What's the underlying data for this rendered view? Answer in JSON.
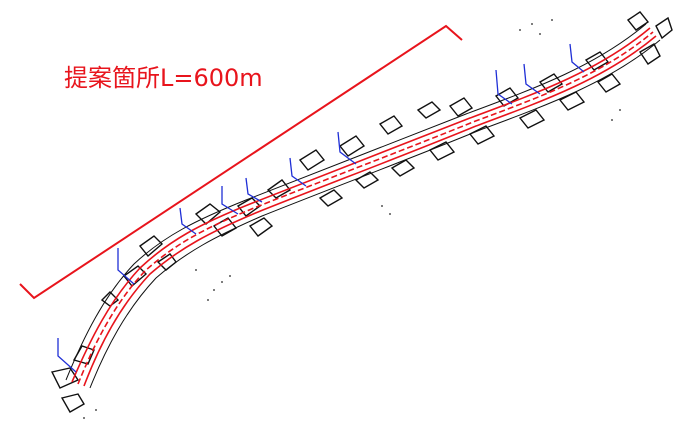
{
  "annotation": {
    "text": "提案箇所L=600m",
    "color": "#e8141c"
  },
  "colors": {
    "road": "#e8141c",
    "linework": "#111111",
    "leader": "#1f2fd6",
    "background": "#ffffff"
  }
}
